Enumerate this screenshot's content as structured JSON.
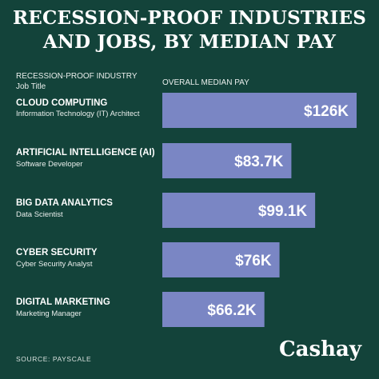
{
  "title_line1": "RECESSION-PROOF INDUSTRIES",
  "title_line2": "AND JOBS, BY MEDIAN PAY",
  "col_industry": "RECESSION-PROOF INDUSTRY",
  "col_job": "Job Title",
  "col_pay": "OVERALL MEDIAN PAY",
  "source": "SOURCE: PAYSCALE",
  "brand": "Cashay",
  "colors": {
    "background": "#13433a",
    "bar": "#7a86c4",
    "text": "#ffffff"
  },
  "chart_data": {
    "type": "bar",
    "orientation": "horizontal",
    "categories": [
      "CLOUD COMPUTING",
      "ARTIFICIAL INTELLIGENCE (AI)",
      "BIG DATA ANALYTICS",
      "CYBER SECURITY",
      "DIGITAL MARKETING"
    ],
    "job_titles": [
      "Information Technology (IT) Architect",
      "Software Developer",
      "Data Scientist",
      "Cyber Security Analyst",
      "Marketing Manager"
    ],
    "values": [
      126000,
      83700,
      99100,
      76000,
      66200
    ],
    "value_labels": [
      "$126K",
      "$83.7K",
      "$99.1K",
      "$76K",
      "$66.2K"
    ],
    "xlabel": "OVERALL MEDIAN PAY",
    "grid": false,
    "legend": "none"
  }
}
